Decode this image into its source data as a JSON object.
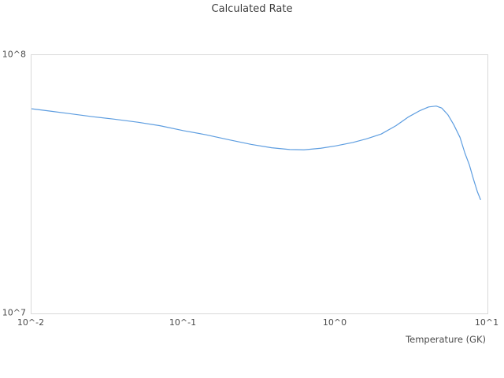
{
  "title": "Calculated Rate",
  "colors": {
    "line": "#5d9de0",
    "plot_border": "#d9d9d9",
    "title_text": "#3d3d3d",
    "tick_text": "#4a4a4a",
    "background": "#ffffff"
  },
  "chart_data": {
    "type": "line",
    "title": "Calculated Rate",
    "xlabel": "Temperature (GK)",
    "ylabel": "",
    "x_scale": "log",
    "y_scale": "log",
    "xlim": [
      0.01,
      10
    ],
    "ylim": [
      10000000.0,
      100000000.0
    ],
    "grid": false,
    "legend": false,
    "x_ticks": [
      {
        "label": "10^-2",
        "value": 0.01
      },
      {
        "label": "10^-1",
        "value": 0.1
      },
      {
        "label": "10^0",
        "value": 1
      },
      {
        "label": "10^1",
        "value": 10
      }
    ],
    "y_ticks": [
      {
        "label": "10^7",
        "value": 10000000.0
      },
      {
        "label": "10^8",
        "value": 100000000.0
      }
    ],
    "series": [
      {
        "name": "Calculated Rate",
        "color": "#5d9de0",
        "points": [
          [
            0.01,
            62000000.0
          ],
          [
            0.013,
            60800000.0
          ],
          [
            0.018,
            59300000.0
          ],
          [
            0.025,
            57800000.0
          ],
          [
            0.035,
            56500000.0
          ],
          [
            0.05,
            55000000.0
          ],
          [
            0.07,
            53300000.0
          ],
          [
            0.1,
            51000000.0
          ],
          [
            0.14,
            49200000.0
          ],
          [
            0.2,
            47000000.0
          ],
          [
            0.28,
            45100000.0
          ],
          [
            0.38,
            43800000.0
          ],
          [
            0.5,
            43100000.0
          ],
          [
            0.62,
            43000000.0
          ],
          [
            0.8,
            43600000.0
          ],
          [
            1.0,
            44500000.0
          ],
          [
            1.3,
            45900000.0
          ],
          [
            1.6,
            47400000.0
          ],
          [
            2.0,
            49500000.0
          ],
          [
            2.5,
            53300000.0
          ],
          [
            3.0,
            57500000.0
          ],
          [
            3.6,
            61000000.0
          ],
          [
            4.1,
            63000000.0
          ],
          [
            4.6,
            63500000.0
          ],
          [
            5.0,
            62400000.0
          ],
          [
            5.5,
            58700000.0
          ],
          [
            6.0,
            53800000.0
          ],
          [
            6.6,
            48000000.0
          ],
          [
            7.1,
            41800000.0
          ],
          [
            7.6,
            37600000.0
          ],
          [
            8.1,
            33000000.0
          ],
          [
            8.6,
            29500000.0
          ],
          [
            9.0,
            27600000.0
          ]
        ]
      }
    ]
  }
}
